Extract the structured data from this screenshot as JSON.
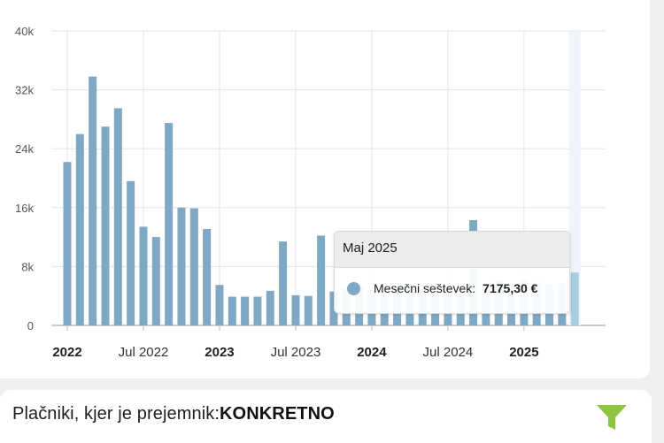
{
  "chart_data": {
    "type": "bar",
    "ylim": [
      0,
      40000
    ],
    "y_ticks": [
      0,
      8000,
      16000,
      24000,
      32000,
      40000
    ],
    "y_tick_labels": [
      "0",
      "8k",
      "16k",
      "24k",
      "32k",
      "40k"
    ],
    "x_ticks": [
      {
        "label": "2022",
        "bold": true
      },
      {
        "label": "Jul 2022",
        "bold": false
      },
      {
        "label": "2023",
        "bold": true
      },
      {
        "label": "Jul 2023",
        "bold": false
      },
      {
        "label": "2024",
        "bold": true
      },
      {
        "label": "Jul 2024",
        "bold": false
      },
      {
        "label": "2025",
        "bold": true
      }
    ],
    "grid": true,
    "series": [
      {
        "color": "#7fa8c4",
        "x": [
          "2022-01",
          "2022-02",
          "2022-03",
          "2022-04",
          "2022-05",
          "2022-06",
          "2022-07",
          "2022-08",
          "2022-09",
          "2022-10",
          "2022-11",
          "2022-12",
          "2023-01",
          "2023-02",
          "2023-03",
          "2023-04",
          "2023-05",
          "2023-06",
          "2023-07",
          "2023-08",
          "2023-09",
          "2023-10",
          "2023-11",
          "2023-12",
          "2024-01",
          "2024-02",
          "2024-03",
          "2024-04",
          "2024-05",
          "2024-06",
          "2024-07",
          "2024-08",
          "2024-09",
          "2024-10",
          "2024-11",
          "2024-12",
          "2025-01",
          "2025-02",
          "2025-03",
          "2025-04",
          "2025-05"
        ],
        "values": [
          22200,
          26000,
          33800,
          27000,
          29500,
          19600,
          13400,
          12000,
          27500,
          16000,
          15900,
          13100,
          5500,
          3900,
          3900,
          3900,
          4700,
          11400,
          4100,
          4000,
          12200,
          4600,
          5000,
          5200,
          4800,
          4400,
          5100,
          5200,
          4900,
          4700,
          5200,
          5000,
          14300,
          5400,
          6100,
          5200,
          6000,
          5800,
          5600,
          5700,
          7175.3
        ]
      }
    ],
    "highlight_index": 40
  },
  "tooltip": {
    "title": "Maj 2025",
    "label": "Mesečni seštevek:",
    "value": "7175,30 €"
  },
  "filter": {
    "prefix": "Plačniki, kjer je prejemnik:",
    "keyword": "KONKRETNO",
    "icon": "filter-icon",
    "icon_color": "#8cc63f"
  }
}
